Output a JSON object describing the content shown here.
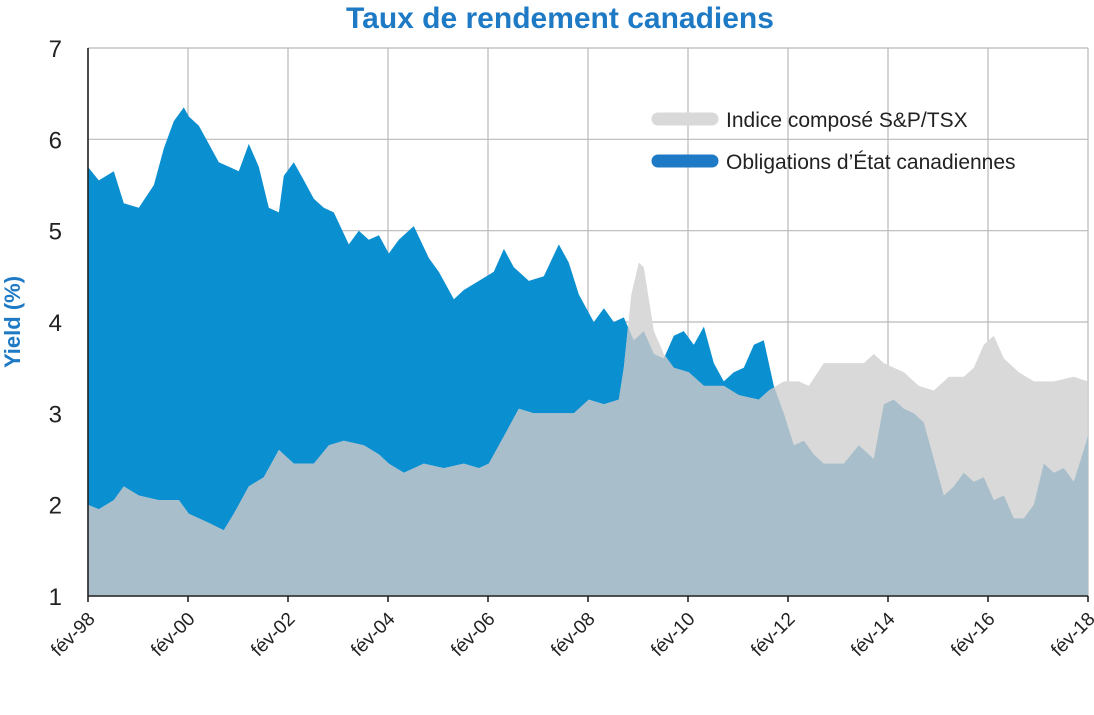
{
  "chart_data": {
    "type": "area",
    "title": "Taux de rendement canadiens",
    "xlabel": "",
    "ylabel": "Yield (%)",
    "ylim": [
      1,
      7
    ],
    "yticks": [
      "1",
      "2",
      "3",
      "4",
      "5",
      "6",
      "7"
    ],
    "xlim": [
      1998.083,
      2018.083
    ],
    "xtick_labels": [
      "fév-98",
      "fév-00",
      "fév-02",
      "fév-04",
      "fév-06",
      "fév-08",
      "fév-10",
      "fév-12",
      "fév-14",
      "fév-16",
      "fév-18"
    ],
    "grid": true,
    "legend_position": "top-right",
    "colors": {
      "tsx": "#d9d9d9",
      "bonds": "#0a8fd1",
      "overlap": "#a8bfcb",
      "title": "#1e7ac4",
      "legend_bonds": "#1e7ac4"
    },
    "series": [
      {
        "name": "Indice composé S&P/TSX",
        "color": "#d9d9d9",
        "x": [
          1998.08,
          1998.3,
          1998.6,
          1998.8,
          1999.1,
          1999.5,
          1999.9,
          2000.1,
          2000.5,
          2000.8,
          2001.0,
          2001.3,
          2001.6,
          2001.9,
          2002.2,
          2002.6,
          2002.9,
          2003.2,
          2003.6,
          2003.9,
          2004.1,
          2004.4,
          2004.8,
          2005.2,
          2005.6,
          2005.9,
          2006.1,
          2006.4,
          2006.7,
          2007.0,
          2007.4,
          2007.8,
          2008.1,
          2008.4,
          2008.7,
          2008.8,
          2008.95,
          2009.1,
          2009.2,
          2009.4,
          2009.6,
          2009.8,
          2010.1,
          2010.4,
          2010.8,
          2011.1,
          2011.5,
          2011.7,
          2012.0,
          2012.3,
          2012.5,
          2012.8,
          2013.0,
          2013.3,
          2013.6,
          2013.8,
          2014.0,
          2014.4,
          2014.7,
          2015.0,
          2015.3,
          2015.6,
          2015.8,
          2016.0,
          2016.2,
          2016.4,
          2016.7,
          2017.0,
          2017.4,
          2017.8,
          2018.08
        ],
        "values": [
          2.0,
          1.95,
          2.05,
          2.2,
          2.1,
          2.05,
          2.05,
          1.9,
          1.8,
          1.72,
          1.9,
          2.2,
          2.3,
          2.6,
          2.45,
          2.45,
          2.65,
          2.7,
          2.65,
          2.55,
          2.45,
          2.35,
          2.45,
          2.4,
          2.45,
          2.4,
          2.45,
          2.75,
          3.05,
          3.0,
          3.0,
          3.0,
          3.15,
          3.1,
          3.15,
          3.5,
          4.3,
          4.65,
          4.6,
          3.9,
          3.65,
          3.5,
          3.45,
          3.3,
          3.3,
          3.2,
          3.15,
          3.25,
          3.35,
          3.35,
          3.3,
          3.55,
          3.55,
          3.55,
          3.55,
          3.65,
          3.55,
          3.45,
          3.3,
          3.25,
          3.4,
          3.4,
          3.5,
          3.75,
          3.85,
          3.6,
          3.45,
          3.35,
          3.35,
          3.4,
          3.35
        ]
      },
      {
        "name": "Obligations d’État canadiennes",
        "color": "#0a8fd1",
        "x": [
          1998.08,
          1998.3,
          1998.6,
          1998.8,
          1999.1,
          1999.4,
          1999.6,
          1999.8,
          2000.0,
          2000.1,
          2000.3,
          2000.5,
          2000.7,
          2000.9,
          2001.1,
          2001.3,
          2001.5,
          2001.7,
          2001.9,
          2002.0,
          2002.2,
          2002.4,
          2002.6,
          2002.8,
          2003.0,
          2003.3,
          2003.5,
          2003.7,
          2003.9,
          2004.1,
          2004.3,
          2004.6,
          2004.9,
          2005.1,
          2005.4,
          2005.6,
          2005.9,
          2006.2,
          2006.4,
          2006.6,
          2006.9,
          2007.2,
          2007.5,
          2007.7,
          2007.9,
          2008.2,
          2008.4,
          2008.6,
          2008.8,
          2009.0,
          2009.2,
          2009.4,
          2009.6,
          2009.8,
          2010.0,
          2010.2,
          2010.4,
          2010.6,
          2010.8,
          2011.0,
          2011.2,
          2011.4,
          2011.6,
          2011.7,
          2011.8,
          2012.0,
          2012.2,
          2012.4,
          2012.6,
          2012.8,
          2013.0,
          2013.2,
          2013.5,
          2013.8,
          2014.0,
          2014.2,
          2014.4,
          2014.6,
          2014.8,
          2015.0,
          2015.2,
          2015.4,
          2015.6,
          2015.8,
          2016.0,
          2016.2,
          2016.4,
          2016.6,
          2016.8,
          2017.0,
          2017.2,
          2017.4,
          2017.6,
          2017.8,
          2018.0,
          2018.08
        ],
        "values": [
          5.7,
          5.55,
          5.65,
          5.3,
          5.25,
          5.5,
          5.9,
          6.2,
          6.35,
          6.25,
          6.15,
          5.95,
          5.75,
          5.7,
          5.65,
          5.95,
          5.7,
          5.25,
          5.2,
          5.6,
          5.75,
          5.55,
          5.35,
          5.25,
          5.2,
          4.85,
          5.0,
          4.9,
          4.95,
          4.75,
          4.9,
          5.05,
          4.7,
          4.55,
          4.25,
          4.35,
          4.45,
          4.55,
          4.8,
          4.6,
          4.45,
          4.5,
          4.85,
          4.65,
          4.3,
          4.0,
          4.15,
          4.0,
          4.05,
          3.8,
          3.9,
          3.65,
          3.6,
          3.85,
          3.9,
          3.75,
          3.95,
          3.55,
          3.35,
          3.45,
          3.5,
          3.75,
          3.8,
          3.55,
          3.3,
          3.0,
          2.65,
          2.7,
          2.55,
          2.45,
          2.45,
          2.45,
          2.65,
          2.5,
          3.1,
          3.15,
          3.05,
          3.0,
          2.9,
          2.5,
          2.1,
          2.2,
          2.35,
          2.25,
          2.3,
          2.05,
          2.1,
          1.85,
          1.85,
          2.0,
          2.45,
          2.35,
          2.4,
          2.25,
          2.6,
          2.75
        ]
      }
    ]
  }
}
